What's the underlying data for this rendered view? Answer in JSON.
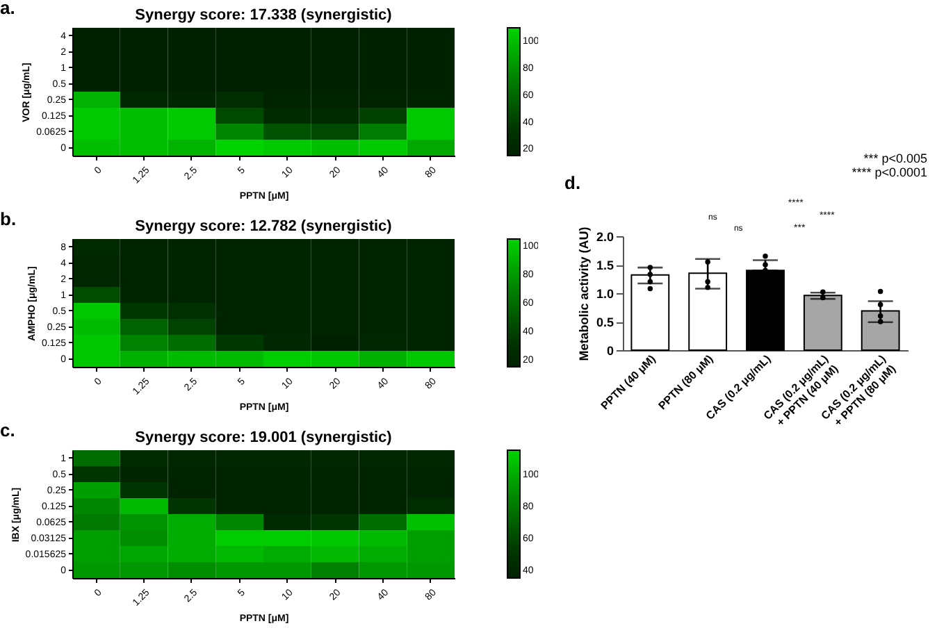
{
  "chart_data": [
    {
      "type": "heatmap",
      "title": "Synergy score: 17.338 (synergistic)",
      "xlabel": "PPTN [μM]",
      "ylabel": "VOR [μg/mL]",
      "annotations": [
        "a."
      ],
      "categories": [
        "0",
        "1.25",
        "2.5",
        "5",
        "10",
        "20",
        "40",
        "80"
      ],
      "y_categories": [
        "4",
        "2",
        "1",
        "0.5",
        "0.25",
        "0.125",
        "0.0625",
        "0"
      ],
      "cells": [
        [
          16,
          16,
          16,
          16,
          16,
          16,
          16,
          16
        ],
        [
          16,
          16,
          16,
          16,
          16,
          16,
          16,
          16
        ],
        [
          16,
          16,
          16,
          16,
          16,
          16,
          16,
          16
        ],
        [
          16,
          16,
          16,
          16,
          16,
          16,
          16,
          16
        ],
        [
          95,
          22,
          20,
          28,
          18,
          18,
          18,
          18
        ],
        [
          105,
          100,
          105,
          45,
          25,
          25,
          40,
          105
        ],
        [
          105,
          100,
          105,
          75,
          50,
          45,
          70,
          105
        ],
        [
          100,
          100,
          95,
          110,
          105,
          100,
          105,
          90
        ]
      ],
      "clim": [
        15,
        110
      ],
      "cticks": [
        20,
        40,
        60,
        80,
        100
      ]
    },
    {
      "type": "heatmap",
      "title": "Synergy score: 12.782 (synergistic)",
      "xlabel": "PPTN [μM]",
      "ylabel": "AMPHO [μg/mL]",
      "annotations": [
        "b."
      ],
      "categories": [
        "0",
        "1.25",
        "2.5",
        "5",
        "10",
        "20",
        "40",
        "80"
      ],
      "y_categories": [
        "8",
        "4",
        "2",
        "1",
        "0.5",
        "0.25",
        "0.125",
        "0"
      ],
      "cells": [
        [
          22,
          18,
          17,
          17,
          17,
          17,
          17,
          17
        ],
        [
          20,
          17,
          17,
          17,
          17,
          17,
          17,
          17
        ],
        [
          20,
          17,
          17,
          17,
          17,
          17,
          17,
          17
        ],
        [
          45,
          18,
          17,
          17,
          17,
          17,
          17,
          17
        ],
        [
          100,
          35,
          28,
          18,
          17,
          17,
          17,
          17
        ],
        [
          95,
          55,
          40,
          18,
          17,
          17,
          17,
          17
        ],
        [
          100,
          70,
          60,
          35,
          20,
          15,
          20,
          18
        ],
        [
          100,
          90,
          95,
          95,
          102,
          100,
          90,
          100
        ]
      ],
      "clim": [
        15,
        105
      ],
      "cticks": [
        20,
        40,
        60,
        80,
        100
      ]
    },
    {
      "type": "heatmap",
      "title": "Synergy score: 19.001 (synergistic)",
      "xlabel": "PPTN [μM]",
      "ylabel": "IBX [μg/mL]",
      "annotations": [
        "c."
      ],
      "categories": [
        "0",
        "1.25",
        "2.5",
        "5",
        "10",
        "20",
        "40",
        "80"
      ],
      "y_categories": [
        "1",
        "0.5",
        "0.25",
        "0.125",
        "0.0625",
        "0.03125",
        "0.015625",
        "0"
      ],
      "cells": [
        [
          75,
          42,
          40,
          40,
          40,
          40,
          40,
          40
        ],
        [
          50,
          38,
          37,
          37,
          37,
          37,
          37,
          38
        ],
        [
          95,
          50,
          38,
          37,
          36,
          36,
          36,
          36
        ],
        [
          85,
          105,
          50,
          37,
          36,
          36,
          37,
          45
        ],
        [
          80,
          90,
          100,
          85,
          42,
          50,
          75,
          108
        ],
        [
          95,
          88,
          100,
          112,
          112,
          110,
          105,
          95
        ],
        [
          95,
          98,
          100,
          105,
          100,
          105,
          100,
          95
        ],
        [
          92,
          92,
          88,
          92,
          92,
          82,
          92,
          92
        ]
      ],
      "clim": [
        35,
        115
      ],
      "cticks": [
        40,
        60,
        80,
        100
      ]
    },
    {
      "type": "bar",
      "ylabel": "Metabolic activity (AU)",
      "annotations": [
        "d.",
        "ns",
        "ns",
        "***",
        "****",
        "****",
        "*** p<0.005",
        "**** p<0.0001"
      ],
      "categories": [
        "PPTN (40 μM)",
        "PPTN (80 μM)",
        "CAS (0.2 μg/mL)",
        "CAS (0.2 μg/mL)\n+ PPTN (40 μM)",
        "CAS (0.2 μg/mL)\n+ PPTN (80 μM)"
      ],
      "series": [
        {
          "values": [
            1.32,
            1.35,
            1.4,
            0.96,
            0.69
          ],
          "colors": [
            "#ffffff",
            "#ffffff",
            "#000000",
            "#a6a6a6",
            "#a6a6a6"
          ],
          "errors": [
            [
              1.17,
              1.45
            ],
            [
              1.08,
              1.6
            ],
            [
              1.4,
              1.58
            ],
            [
              0.9,
              1.01
            ],
            [
              0.49,
              0.86
            ]
          ]
        },
        {
          "type": "scatter",
          "color": "#000000",
          "marker": "circle",
          "x": [
            "PPTN (40 μM)",
            "PPTN (40 μM)",
            "PPTN (40 μM)",
            "PPTN (40 μM)",
            "PPTN (80 μM)",
            "PPTN (80 μM)",
            "PPTN (80 μM)",
            "CAS (0.2 μg/mL)",
            "CAS (0.2 μg/mL)",
            "CAS (0.2 μg/mL)",
            "CAS (0.2 μg/mL)\n+ PPTN (40 μM)",
            "CAS (0.2 μg/mL)\n+ PPTN (40 μM)",
            "CAS (0.2 μg/mL)\n+ PPTN (80 μM)",
            "CAS (0.2 μg/mL)\n+ PPTN (80 μM)",
            "CAS (0.2 μg/mL)\n+ PPTN (80 μM)",
            "CAS (0.2 μg/mL)\n+ PPTN (80 μM)"
          ],
          "values": [
            1.45,
            1.33,
            1.2,
            1.08,
            1.55,
            1.2,
            1.1,
            1.65,
            1.5,
            1.4,
            1.02,
            0.92,
            1.03,
            0.8,
            0.6,
            0.5
          ]
        }
      ],
      "ylim": [
        0,
        2
      ],
      "yticks": [
        0,
        0.5,
        {
          "value": 1,
          "label": "1.0"
        },
        1.5,
        {
          "value": 2,
          "label": "2.0"
        }
      ]
    }
  ]
}
